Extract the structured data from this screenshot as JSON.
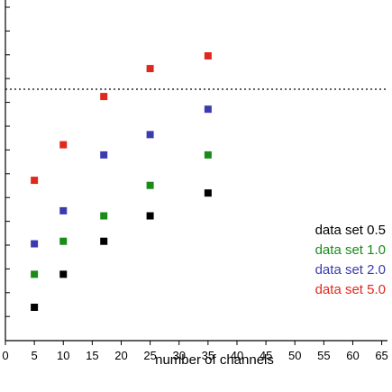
{
  "chart_data": {
    "type": "scatter",
    "title": "",
    "xlabel": "number of channels",
    "ylabel": "",
    "xlim": [
      0,
      66
    ],
    "xticks": [
      0,
      5,
      10,
      15,
      20,
      25,
      30,
      35,
      40,
      45,
      50,
      55,
      60,
      65
    ],
    "grid": false,
    "legend_position": "right",
    "reference_line": {
      "style": "dotted",
      "color": "#000000"
    },
    "series": [
      {
        "name": "data set 0.5",
        "color": "#000000",
        "x": [
          5,
          10,
          17,
          25,
          35
        ],
        "y": [
          0.12,
          0.25,
          0.38,
          0.48,
          0.57
        ]
      },
      {
        "name": "data set 1.0",
        "color": "#1a8a1a",
        "x": [
          5,
          10,
          17,
          25,
          35
        ],
        "y": [
          0.25,
          0.38,
          0.48,
          0.6,
          0.72
        ]
      },
      {
        "name": "data set 2.0",
        "color": "#3b3bb0",
        "x": [
          5,
          10,
          17,
          25,
          35
        ],
        "y": [
          0.37,
          0.5,
          0.72,
          0.8,
          0.9
        ]
      },
      {
        "name": "data set 5.0",
        "color": "#e0281e",
        "x": [
          5,
          10,
          17,
          25,
          35
        ],
        "y": [
          0.62,
          0.76,
          0.95,
          1.06,
          1.11
        ]
      }
    ]
  }
}
